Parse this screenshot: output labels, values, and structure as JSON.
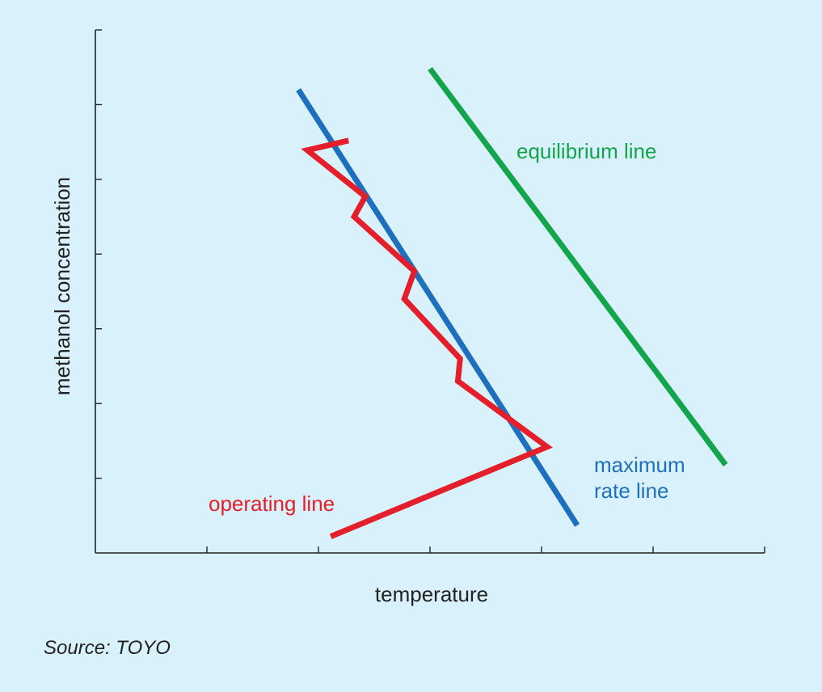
{
  "chart_data": {
    "type": "line",
    "xlabel": "temperature",
    "ylabel": "methanol concentration",
    "xlim": [
      0,
      6
    ],
    "ylim": [
      0,
      7
    ],
    "x_ticks": [
      0,
      1,
      2,
      3,
      4,
      5,
      6
    ],
    "y_ticks": [
      0,
      1,
      2,
      3,
      4,
      5,
      6,
      7
    ],
    "grid": false,
    "legend": "none",
    "series": [
      {
        "name": "equilibrium line",
        "color": "#12a54b",
        "label_lines": [
          "equilibrium line"
        ],
        "points": [
          [
            3.0,
            6.48
          ],
          [
            5.65,
            1.18
          ]
        ]
      },
      {
        "name": "maximum rate line",
        "color": "#1f6fbf",
        "label_lines": [
          "maximum",
          "rate line"
        ],
        "points": [
          [
            1.82,
            6.2
          ],
          [
            4.32,
            0.37
          ]
        ]
      },
      {
        "name": "operating line",
        "color": "#e41e2b",
        "label_lines": [
          "operating line"
        ],
        "points": [
          [
            2.27,
            5.52
          ],
          [
            1.9,
            5.39
          ],
          [
            2.42,
            4.77
          ],
          [
            2.32,
            4.5
          ],
          [
            2.86,
            3.77
          ],
          [
            2.77,
            3.4
          ],
          [
            3.27,
            2.6
          ],
          [
            3.25,
            2.3
          ],
          [
            4.05,
            1.42
          ],
          [
            2.11,
            0.22
          ]
        ]
      }
    ],
    "source": "Source: TOYO"
  }
}
